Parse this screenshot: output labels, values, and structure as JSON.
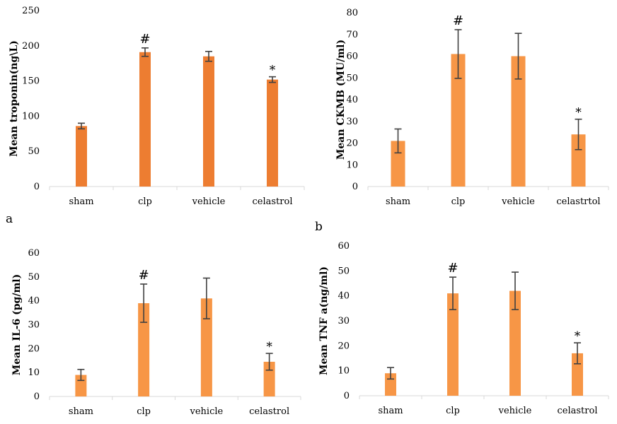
{
  "chart_data": [
    {
      "type": "bar",
      "panel": "a",
      "categories": [
        "sham",
        "clp",
        "vehicle",
        "celastrol"
      ],
      "values": [
        86,
        191,
        185,
        152
      ],
      "errors": [
        4,
        6,
        7,
        4
      ],
      "annotations": [
        "",
        "#",
        "",
        "*"
      ],
      "ylabel": "Mean troponin(ng\\L)",
      "ylim": [
        0,
        250
      ],
      "yticks": [
        "0",
        "50",
        "100",
        "150",
        "200",
        "250"
      ],
      "grid": false,
      "color": "#ED7D31"
    },
    {
      "type": "bar",
      "panel": "b",
      "categories": [
        "sham",
        "clp",
        "vehicle",
        "celastrtol"
      ],
      "values": [
        21,
        61,
        60,
        24
      ],
      "errors": [
        5.5,
        11.2,
        10.5,
        7
      ],
      "annotations": [
        "",
        "#",
        "",
        "*"
      ],
      "ylabel": "Mean CKMB (MU/ml)",
      "ylim": [
        0,
        80
      ],
      "yticks": [
        "0",
        "10",
        "20",
        "30",
        "40",
        "50",
        "60",
        "70",
        "80"
      ],
      "grid": false,
      "color": "#F79646"
    },
    {
      "type": "bar",
      "panel": "",
      "categories": [
        "sham",
        "clp",
        "vehicle",
        "celastrol"
      ],
      "values": [
        9,
        39,
        41,
        14.5
      ],
      "errors": [
        2.3,
        8,
        8.5,
        3.5
      ],
      "annotations": [
        "",
        "#",
        "",
        "*"
      ],
      "ylabel": "Mean IL-6 (pg/ml)",
      "ylim": [
        0,
        60
      ],
      "yticks": [
        "0",
        "10",
        "20",
        "30",
        "40",
        "50",
        "60"
      ],
      "grid": false,
      "color": "#F79646"
    },
    {
      "type": "bar",
      "panel": "",
      "categories": [
        "sham",
        "clp",
        "vehicle",
        "celastrol"
      ],
      "values": [
        9,
        41,
        42,
        17
      ],
      "errors": [
        2.3,
        6.5,
        7.5,
        4.2
      ],
      "annotations": [
        "",
        "#",
        "",
        "*"
      ],
      "ylabel": "Mean TNF a(ng/ml)",
      "ylim": [
        0,
        60
      ],
      "yticks": [
        "0",
        "10",
        "20",
        "30",
        "40",
        "50",
        "60"
      ],
      "grid": false,
      "color": "#F79646"
    }
  ],
  "colors": {
    "axis": "#D9D9D9",
    "error_bar": "#404040",
    "text": "#000000"
  }
}
